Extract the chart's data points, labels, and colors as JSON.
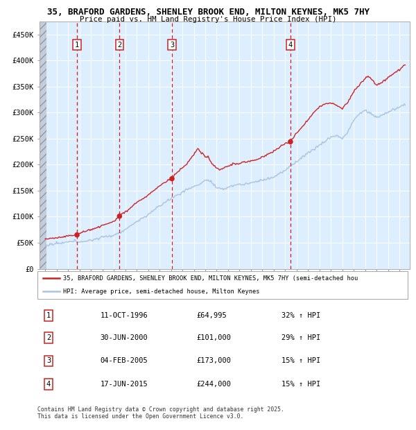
{
  "title1": "35, BRAFORD GARDENS, SHENLEY BROOK END, MILTON KEYNES, MK5 7HY",
  "title2": "Price paid vs. HM Land Registry's House Price Index (HPI)",
  "ylim": [
    0,
    475000
  ],
  "yticks": [
    0,
    50000,
    100000,
    150000,
    200000,
    250000,
    300000,
    350000,
    400000,
    450000
  ],
  "ytick_labels": [
    "£0",
    "£50K",
    "£100K",
    "£150K",
    "£200K",
    "£250K",
    "£300K",
    "£350K",
    "£400K",
    "£450K"
  ],
  "sale_dates": [
    1996.78,
    2000.5,
    2005.09,
    2015.46
  ],
  "sale_prices": [
    64995,
    101000,
    173000,
    244000
  ],
  "sale_labels": [
    "1",
    "2",
    "3",
    "4"
  ],
  "legend_line1": "35, BRAFORD GARDENS, SHENLEY BROOK END, MILTON KEYNES, MK5 7HY (semi-detached hou",
  "legend_line2": "HPI: Average price, semi-detached house, Milton Keynes",
  "table_rows": [
    [
      "1",
      "11-OCT-1996",
      "£64,995",
      "32% ↑ HPI"
    ],
    [
      "2",
      "30-JUN-2000",
      "£101,000",
      "29% ↑ HPI"
    ],
    [
      "3",
      "04-FEB-2005",
      "£173,000",
      "15% ↑ HPI"
    ],
    [
      "4",
      "17-JUN-2015",
      "£244,000",
      "15% ↑ HPI"
    ]
  ],
  "footer": "Contains HM Land Registry data © Crown copyright and database right 2025.\nThis data is licensed under the Open Government Licence v3.0.",
  "hpi_color": "#a8c4e0",
  "price_color": "#cc2222",
  "background_color": "#ddeeff",
  "hatch_region_color": "#c5cdd8"
}
